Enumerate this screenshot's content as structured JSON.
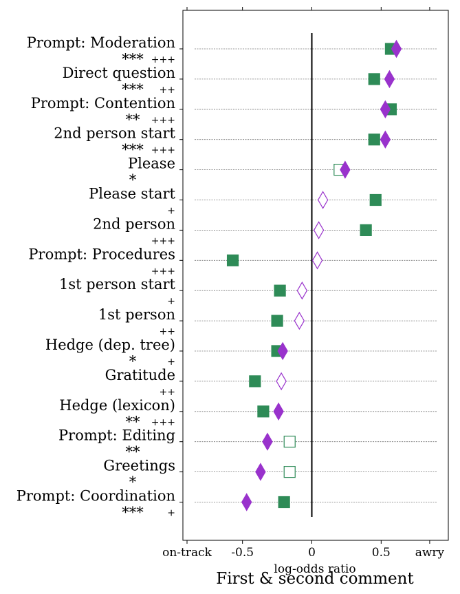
{
  "chart_data": {
    "type": "scatter",
    "title": "First & second comment",
    "xlabel": "log-odds ratio",
    "xlim": [
      -0.9,
      0.9
    ],
    "x_ticks": [
      {
        "value": -0.9,
        "label": "on-track"
      },
      {
        "value": -0.5,
        "label": "-0.5"
      },
      {
        "value": 0,
        "label": "0"
      },
      {
        "value": 0.5,
        "label": "0.5"
      },
      {
        "value": 0.85,
        "label": "awry"
      }
    ],
    "reference_line": 0,
    "grid": "horizontal dotted per row",
    "colors": {
      "first": "#2e8b57",
      "second": "#9932cc"
    },
    "rows": [
      {
        "label": "Prompt: Moderation",
        "stars": "***",
        "plus": "+++",
        "first": {
          "value": 0.57,
          "significant": true
        },
        "second": {
          "value": 0.61,
          "significant": true
        }
      },
      {
        "label": "Direct question",
        "stars": "***",
        "plus": "++",
        "first": {
          "value": 0.45,
          "significant": true
        },
        "second": {
          "value": 0.56,
          "significant": true
        }
      },
      {
        "label": "Prompt: Contention",
        "stars": "**",
        "plus": "+++",
        "first": {
          "value": 0.57,
          "significant": true
        },
        "second": {
          "value": 0.53,
          "significant": true
        }
      },
      {
        "label": "2nd person start",
        "stars": "***",
        "plus": "+++",
        "first": {
          "value": 0.45,
          "significant": true
        },
        "second": {
          "value": 0.53,
          "significant": true
        }
      },
      {
        "label": "Please",
        "stars": "*",
        "plus": "",
        "first": {
          "value": 0.2,
          "significant": false
        },
        "second": {
          "value": 0.24,
          "significant": true
        }
      },
      {
        "label": "Please start",
        "stars": "",
        "plus": "+",
        "first": {
          "value": 0.46,
          "significant": true
        },
        "second": {
          "value": 0.08,
          "significant": false
        }
      },
      {
        "label": "2nd person",
        "stars": "",
        "plus": "+++",
        "first": {
          "value": 0.39,
          "significant": true
        },
        "second": {
          "value": 0.05,
          "significant": false
        }
      },
      {
        "label": "Prompt: Procedures",
        "stars": "",
        "plus": "+++",
        "first": {
          "value": -0.57,
          "significant": true
        },
        "second": {
          "value": 0.04,
          "significant": false
        }
      },
      {
        "label": "1st person start",
        "stars": "",
        "plus": "+",
        "first": {
          "value": -0.23,
          "significant": true
        },
        "second": {
          "value": -0.07,
          "significant": false
        }
      },
      {
        "label": "1st person",
        "stars": "",
        "plus": "++",
        "first": {
          "value": -0.25,
          "significant": true
        },
        "second": {
          "value": -0.09,
          "significant": false
        }
      },
      {
        "label": "Hedge (dep. tree)",
        "stars": "*",
        "plus": "+",
        "first": {
          "value": -0.25,
          "significant": true
        },
        "second": {
          "value": -0.21,
          "significant": true
        }
      },
      {
        "label": "Gratitude",
        "stars": "",
        "plus": "++",
        "first": {
          "value": -0.41,
          "significant": true
        },
        "second": {
          "value": -0.22,
          "significant": false
        }
      },
      {
        "label": "Hedge (lexicon)",
        "stars": "**",
        "plus": "+++",
        "first": {
          "value": -0.35,
          "significant": true
        },
        "second": {
          "value": -0.24,
          "significant": true
        }
      },
      {
        "label": "Prompt: Editing",
        "stars": "**",
        "plus": "",
        "first": {
          "value": -0.16,
          "significant": false
        },
        "second": {
          "value": -0.32,
          "significant": true
        }
      },
      {
        "label": "Greetings",
        "stars": "*",
        "plus": "",
        "first": {
          "value": -0.16,
          "significant": false
        },
        "second": {
          "value": -0.37,
          "significant": true
        }
      },
      {
        "label": "Prompt: Coordination",
        "stars": "***",
        "plus": "+",
        "first": {
          "value": -0.2,
          "significant": true
        },
        "second": {
          "value": -0.47,
          "significant": true
        }
      }
    ]
  }
}
